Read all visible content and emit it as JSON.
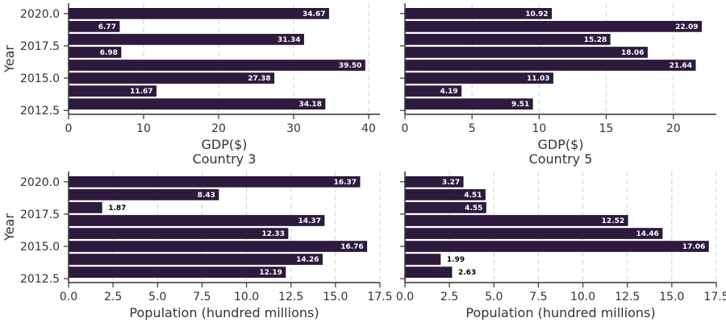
{
  "chart_data": [
    {
      "type": "bar",
      "orientation": "horizontal",
      "title": "",
      "xlabel": "GDP($)",
      "ylabel": "Year",
      "x": [
        2013,
        2014,
        2015,
        2016,
        2017,
        2018,
        2019,
        2020
      ],
      "values": [
        34.18,
        11.67,
        27.38,
        39.5,
        6.98,
        31.34,
        6.77,
        34.67
      ],
      "value_labels": [
        "34.18",
        "11.67",
        "27.38",
        "39.50",
        "6.98",
        "31.34",
        "6.77",
        "34.67"
      ],
      "xlim": [
        0,
        41.5
      ],
      "xticks": [
        0,
        10,
        20,
        30,
        40
      ],
      "xtick_labels": [
        "0",
        "10",
        "20",
        "30",
        "40"
      ],
      "yticks": [
        2012.5,
        2015.0,
        2017.5,
        2020.0
      ],
      "ytick_labels": [
        "2012.5",
        "2015.0",
        "2017.5",
        "2020.0"
      ],
      "ylim": [
        2012.2,
        2020.8
      ],
      "grid": "vertical dashed"
    },
    {
      "type": "bar",
      "orientation": "horizontal",
      "title": "",
      "xlabel": "GDP($)",
      "ylabel": "",
      "x": [
        2013,
        2014,
        2015,
        2016,
        2017,
        2018,
        2019,
        2020
      ],
      "values": [
        9.51,
        4.19,
        11.03,
        21.64,
        18.06,
        15.28,
        22.09,
        10.92
      ],
      "value_labels": [
        "9.51",
        "4.19",
        "11.03",
        "21.64",
        "18.06",
        "15.28",
        "22.09",
        "10.92"
      ],
      "xlim": [
        0,
        23.2
      ],
      "xticks": [
        0,
        5,
        10,
        15,
        20
      ],
      "xtick_labels": [
        "0",
        "5",
        "10",
        "15",
        "20"
      ],
      "yticks": [
        2012.5,
        2015.0,
        2017.5,
        2020.0
      ],
      "ytick_labels": [],
      "ylim": [
        2012.2,
        2020.8
      ],
      "grid": "vertical dashed"
    },
    {
      "type": "bar",
      "orientation": "horizontal",
      "title": "Country 3",
      "xlabel": "Population (hundred millions)",
      "ylabel": "Year",
      "x": [
        2013,
        2014,
        2015,
        2016,
        2017,
        2018,
        2019,
        2020
      ],
      "values": [
        12.19,
        14.26,
        16.76,
        12.33,
        14.37,
        1.87,
        8.43,
        16.37
      ],
      "value_labels": [
        "12.19",
        "14.26",
        "16.76",
        "12.33",
        "14.37",
        "1.87",
        "8.43",
        "16.37"
      ],
      "xlim": [
        0,
        17.5
      ],
      "xticks": [
        0,
        2.5,
        5,
        7.5,
        10,
        12.5,
        15,
        17.5
      ],
      "xtick_labels": [
        "0.0",
        "2.5",
        "5.0",
        "7.5",
        "10.0",
        "12.5",
        "15.0",
        "17.5"
      ],
      "yticks": [
        2012.5,
        2015.0,
        2017.5,
        2020.0
      ],
      "ytick_labels": [
        "2012.5",
        "2015.0",
        "2017.5",
        "2020.0"
      ],
      "ylim": [
        2012.2,
        2020.8
      ],
      "grid": "vertical dashed"
    },
    {
      "type": "bar",
      "orientation": "horizontal",
      "title": "Country 5",
      "xlabel": "Population (hundred millions)",
      "ylabel": "",
      "x": [
        2013,
        2014,
        2015,
        2016,
        2017,
        2018,
        2019,
        2020
      ],
      "values": [
        2.63,
        1.99,
        17.06,
        14.46,
        12.52,
        4.55,
        4.51,
        3.27
      ],
      "value_labels": [
        "2.63",
        "1.99",
        "17.06",
        "14.46",
        "12.52",
        "4.55",
        "4.51",
        "3.27"
      ],
      "xlim": [
        0,
        17.5
      ],
      "xticks": [
        0,
        2.5,
        5,
        7.5,
        10,
        12.5,
        15,
        17.5
      ],
      "xtick_labels": [
        "0.0",
        "2.5",
        "5.0",
        "7.5",
        "10.0",
        "12.5",
        "15.0",
        "17.5"
      ],
      "yticks": [
        2012.5,
        2015.0,
        2017.5,
        2020.0
      ],
      "ytick_labels": [],
      "ylim": [
        2012.2,
        2020.8
      ],
      "grid": "vertical dashed"
    }
  ],
  "colors": {
    "bar": "#2e1a3f",
    "bar_edge": "#1c1028",
    "axis": "#333333",
    "grid": "#d0d0d0",
    "label_inside": "#ffffff",
    "label_outside": "#000000"
  }
}
